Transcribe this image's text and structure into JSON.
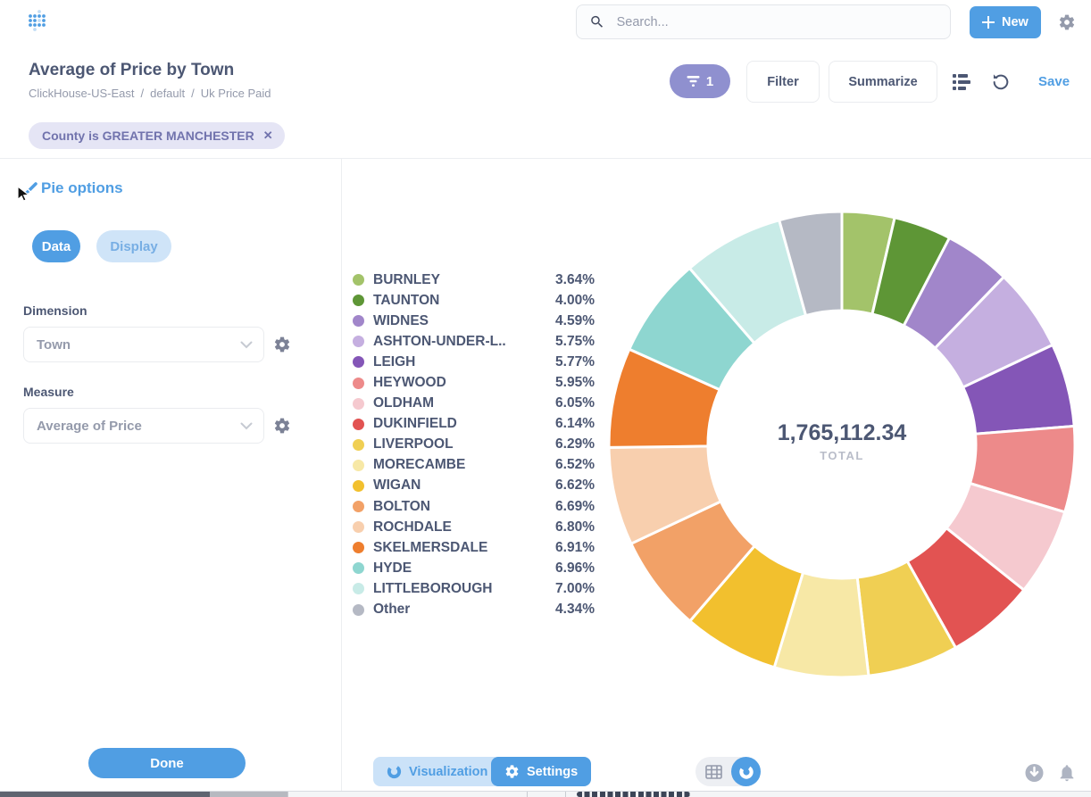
{
  "header": {
    "search_placeholder": "Search...",
    "new_label": "New"
  },
  "question": {
    "title": "Average of Price by Town",
    "breadcrumb": [
      "ClickHouse-US-East",
      "default",
      "Uk Price Paid"
    ],
    "breadcrumb_separator": "/",
    "filter_count": "1",
    "filter_label": "Filter",
    "summarize_label": "Summarize",
    "save_label": "Save"
  },
  "filter_chip": {
    "label": "County is GREATER MANCHESTER",
    "close_icon": "✕"
  },
  "sidebar": {
    "title": "Pie options",
    "tabs": [
      {
        "label": "Data",
        "active": true
      },
      {
        "label": "Display",
        "active": false
      }
    ],
    "dimension_label": "Dimension",
    "dimension_value": "Town",
    "measure_label": "Measure",
    "measure_value": "Average of Price",
    "done_label": "Done"
  },
  "chart_data": {
    "type": "pie",
    "title": "Average of Price by Town",
    "total_value": "1,765,112.34",
    "total_label": "TOTAL",
    "legend_position": "left",
    "donut": true,
    "categories": [
      "BURNLEY",
      "TAUNTON",
      "WIDNES",
      "ASHTON-UNDER-L..",
      "LEIGH",
      "HEYWOOD",
      "OLDHAM",
      "DUKINFIELD",
      "LIVERPOOL",
      "MORECAMBE",
      "WIGAN",
      "BOLTON",
      "ROCHDALE",
      "SKELMERSDALE",
      "HYDE",
      "LITTLEBOROUGH",
      "Other"
    ],
    "values": [
      3.64,
      4.0,
      4.59,
      5.75,
      5.77,
      5.95,
      6.05,
      6.14,
      6.29,
      6.52,
      6.62,
      6.69,
      6.8,
      6.91,
      6.96,
      7.0,
      4.34
    ],
    "colors": [
      "#a3c36a",
      "#5e9636",
      "#a186ca",
      "#c5afe0",
      "#8456b7",
      "#ed8a8a",
      "#f5c9cf",
      "#e25352",
      "#f0cf53",
      "#f7e8a6",
      "#f2c02e",
      "#f2a167",
      "#f8cfae",
      "#ee7e2e",
      "#8ed6d0",
      "#c8ebe7",
      "#b5b9c4"
    ]
  },
  "footer": {
    "visualization_label": "Visualization",
    "settings_label": "Settings"
  },
  "palette": {
    "brand_blue": "#509ee3",
    "text_dark": "#4c5773",
    "text_muted": "#949aab",
    "filter_pill_bg": "#8f90cf",
    "chip_bg": "#e5e5f5",
    "chip_text": "#7173ad"
  }
}
